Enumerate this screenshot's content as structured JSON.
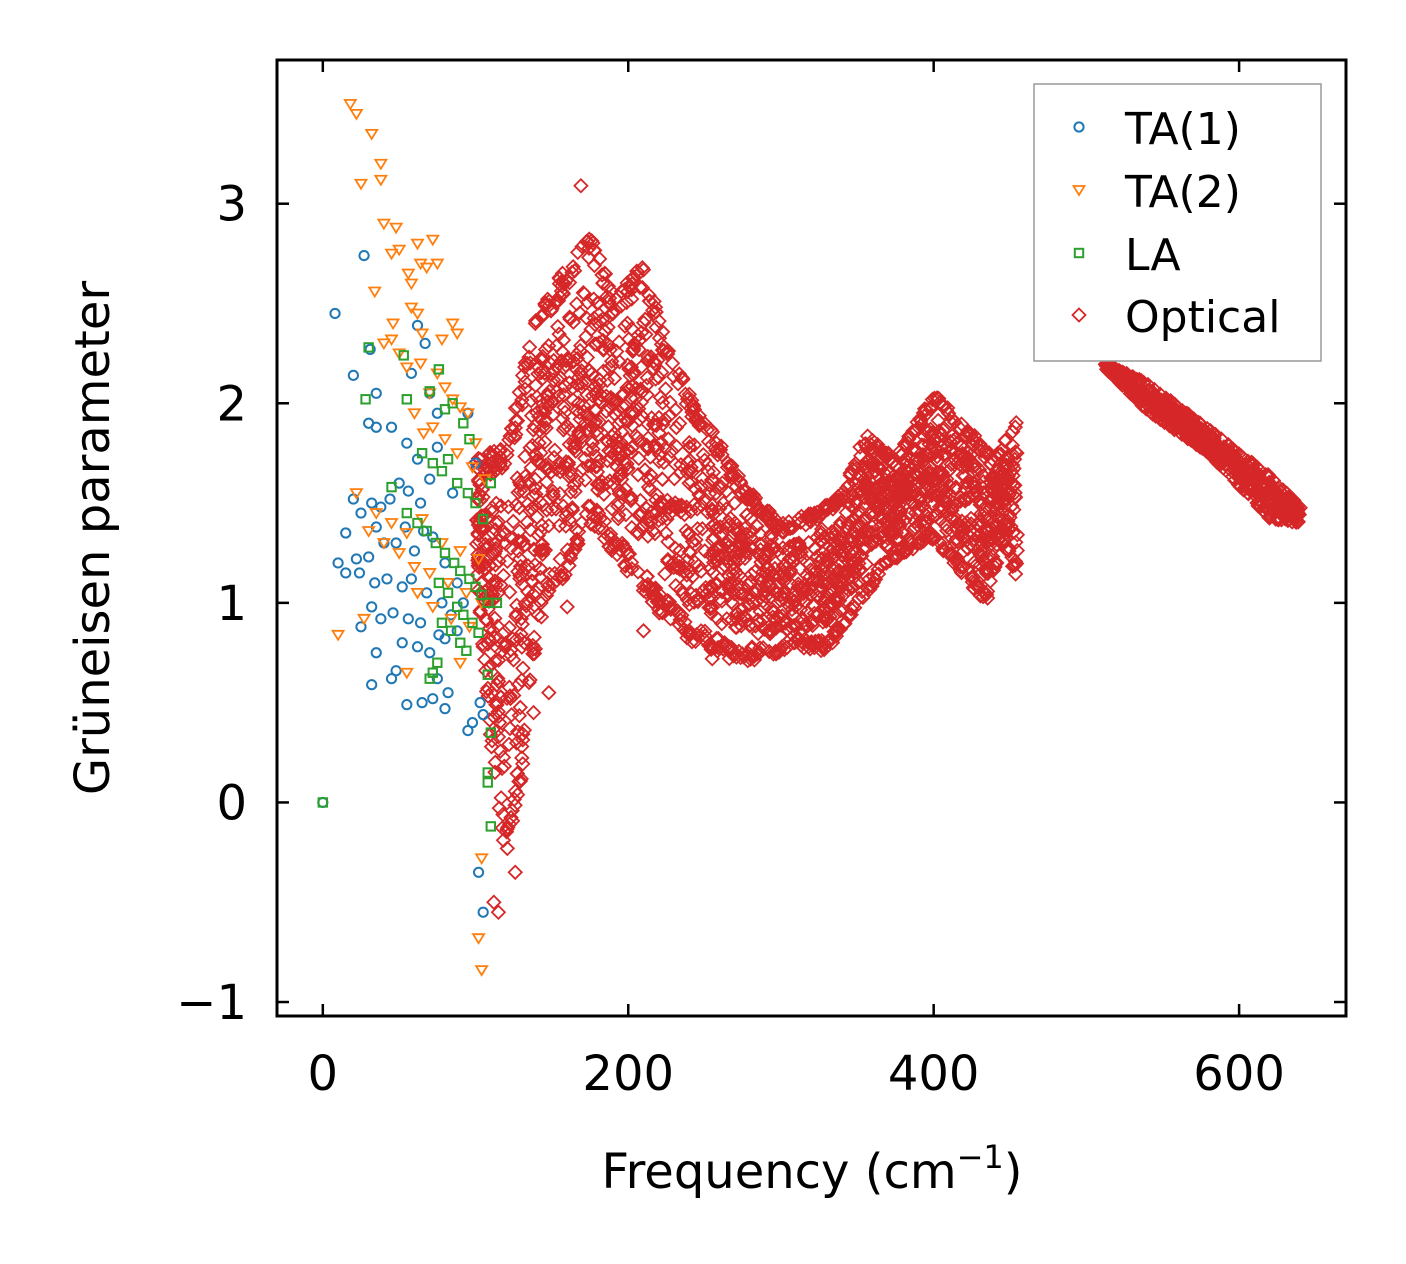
{
  "chart_data": {
    "type": "scatter",
    "title": "",
    "xlabel": "Frequency (cm",
    "xlabel_superscript": "−1",
    "xlabel_suffix": ")",
    "ylabel": "Grüneisen parameter",
    "xlim": [
      -30,
      670
    ],
    "ylim": [
      -1.07,
      3.72
    ],
    "xticks": [
      0,
      200,
      400,
      600
    ],
    "xtick_labels": [
      "0",
      "200",
      "400",
      "600"
    ],
    "yticks": [
      -1,
      0,
      1,
      2,
      3
    ],
    "ytick_labels": [
      "−1",
      "0",
      "1",
      "2",
      "3"
    ],
    "ticks_direction": "in",
    "ticks_mirrored": true,
    "legend_position": "top-right",
    "series": [
      {
        "name": "TA(1)",
        "marker": "circle",
        "color": "#1f77b4",
        "points": [
          [
            0,
            0
          ],
          [
            8,
            2.45
          ],
          [
            20,
            2.14
          ],
          [
            27,
            2.74
          ],
          [
            31,
            2.27
          ],
          [
            35,
            2.05
          ],
          [
            62,
            2.39
          ],
          [
            67,
            2.3
          ],
          [
            58,
            2.15
          ],
          [
            70,
            2.05
          ],
          [
            75,
            1.95
          ],
          [
            95,
            1.95
          ],
          [
            100,
            1.7
          ],
          [
            30,
            1.9
          ],
          [
            35,
            1.88
          ],
          [
            45,
            1.88
          ],
          [
            55,
            1.8
          ],
          [
            62,
            1.72
          ],
          [
            75,
            1.78
          ],
          [
            20,
            1.52
          ],
          [
            25,
            1.45
          ],
          [
            32,
            1.5
          ],
          [
            38,
            1.48
          ],
          [
            44,
            1.52
          ],
          [
            50,
            1.6
          ],
          [
            56,
            1.56
          ],
          [
            64,
            1.5
          ],
          [
            70,
            1.62
          ],
          [
            85,
            1.55
          ],
          [
            15,
            1.35
          ],
          [
            22,
            1.22
          ],
          [
            30,
            1.23
          ],
          [
            35,
            1.38
          ],
          [
            40,
            1.3
          ],
          [
            48,
            1.3
          ],
          [
            54,
            1.38
          ],
          [
            60,
            1.26
          ],
          [
            66,
            1.36
          ],
          [
            72,
            1.33
          ],
          [
            80,
            1.2
          ],
          [
            88,
            1.1
          ],
          [
            92,
            1.0
          ],
          [
            10,
            1.2
          ],
          [
            15,
            1.15
          ],
          [
            24,
            1.15
          ],
          [
            34,
            1.1
          ],
          [
            42,
            1.12
          ],
          [
            52,
            1.08
          ],
          [
            58,
            1.12
          ],
          [
            68,
            1.05
          ],
          [
            78,
            1.0
          ],
          [
            84,
            0.94
          ],
          [
            32,
            0.98
          ],
          [
            38,
            0.92
          ],
          [
            46,
            0.95
          ],
          [
            56,
            0.92
          ],
          [
            64,
            0.9
          ],
          [
            76,
            0.84
          ],
          [
            88,
            0.86
          ],
          [
            25,
            0.88
          ],
          [
            35,
            0.75
          ],
          [
            45,
            0.62
          ],
          [
            48,
            0.66
          ],
          [
            52,
            0.8
          ],
          [
            62,
            0.78
          ],
          [
            75,
            0.62
          ],
          [
            82,
            0.55
          ],
          [
            32,
            0.59
          ],
          [
            55,
            0.49
          ],
          [
            65,
            0.5
          ],
          [
            72,
            0.52
          ],
          [
            80,
            0.47
          ],
          [
            95,
            0.36
          ],
          [
            98,
            0.4
          ],
          [
            103,
            0.5
          ],
          [
            105,
            0.44
          ],
          [
            102,
            -0.35
          ],
          [
            105,
            -0.55
          ],
          [
            80,
            0.82
          ],
          [
            70,
            0.75
          ]
        ]
      },
      {
        "name": "TA(2)",
        "marker": "triangle-down",
        "color": "#ff7f0e",
        "points": [
          [
            18,
            3.5
          ],
          [
            22,
            3.45
          ],
          [
            32,
            3.35
          ],
          [
            38,
            3.2
          ],
          [
            25,
            3.1
          ],
          [
            38,
            3.12
          ],
          [
            40,
            2.9
          ],
          [
            48,
            2.88
          ],
          [
            50,
            2.77
          ],
          [
            45,
            2.75
          ],
          [
            56,
            2.65
          ],
          [
            58,
            2.6
          ],
          [
            62,
            2.8
          ],
          [
            64,
            2.7
          ],
          [
            68,
            2.68
          ],
          [
            72,
            2.82
          ],
          [
            75,
            2.7
          ],
          [
            34,
            2.56
          ],
          [
            46,
            2.4
          ],
          [
            58,
            2.48
          ],
          [
            62,
            2.45
          ],
          [
            65,
            2.35
          ],
          [
            78,
            2.32
          ],
          [
            85,
            2.4
          ],
          [
            88,
            2.35
          ],
          [
            40,
            2.3
          ],
          [
            45,
            2.32
          ],
          [
            50,
            2.25
          ],
          [
            55,
            2.18
          ],
          [
            64,
            2.2
          ],
          [
            70,
            2.05
          ],
          [
            75,
            2.15
          ],
          [
            80,
            2.08
          ],
          [
            85,
            2.02
          ],
          [
            90,
            1.98
          ],
          [
            95,
            1.95
          ],
          [
            100,
            1.8
          ],
          [
            60,
            1.95
          ],
          [
            66,
            1.85
          ],
          [
            72,
            1.88
          ],
          [
            80,
            1.82
          ],
          [
            88,
            1.75
          ],
          [
            98,
            1.68
          ],
          [
            106,
            1.62
          ],
          [
            22,
            1.55
          ],
          [
            35,
            1.45
          ],
          [
            45,
            1.4
          ],
          [
            55,
            1.35
          ],
          [
            65,
            1.42
          ],
          [
            78,
            1.3
          ],
          [
            90,
            1.26
          ],
          [
            102,
            1.22
          ],
          [
            30,
            1.36
          ],
          [
            40,
            1.3
          ],
          [
            50,
            1.25
          ],
          [
            60,
            1.18
          ],
          [
            70,
            1.15
          ],
          [
            82,
            1.1
          ],
          [
            94,
            1.05
          ],
          [
            104,
            1.0
          ],
          [
            62,
            1.05
          ],
          [
            72,
            0.98
          ],
          [
            84,
            0.92
          ],
          [
            96,
            0.88
          ],
          [
            10,
            0.84
          ],
          [
            27,
            0.92
          ],
          [
            55,
            0.65
          ],
          [
            90,
            0.7
          ],
          [
            104,
            -0.28
          ],
          [
            102,
            -0.68
          ],
          [
            104,
            -0.84
          ]
        ]
      },
      {
        "name": "LA",
        "marker": "square",
        "color": "#2ca02c",
        "points": [
          [
            0,
            0
          ],
          [
            30,
            2.28
          ],
          [
            53,
            2.24
          ],
          [
            28,
            2.02
          ],
          [
            55,
            2.02
          ],
          [
            70,
            2.06
          ],
          [
            85,
            2.0
          ],
          [
            76,
            2.17
          ],
          [
            80,
            1.97
          ],
          [
            92,
            1.9
          ],
          [
            96,
            1.82
          ],
          [
            65,
            1.75
          ],
          [
            72,
            1.7
          ],
          [
            78,
            1.66
          ],
          [
            82,
            1.72
          ],
          [
            88,
            1.6
          ],
          [
            95,
            1.55
          ],
          [
            100,
            1.5
          ],
          [
            105,
            1.42
          ],
          [
            110,
            1.6
          ],
          [
            45,
            1.58
          ],
          [
            55,
            1.45
          ],
          [
            62,
            1.4
          ],
          [
            68,
            1.36
          ],
          [
            74,
            1.3
          ],
          [
            80,
            1.25
          ],
          [
            86,
            1.2
          ],
          [
            90,
            1.16
          ],
          [
            96,
            1.12
          ],
          [
            100,
            1.08
          ],
          [
            104,
            1.04
          ],
          [
            108,
            1.0
          ],
          [
            114,
            1.0
          ],
          [
            76,
            1.1
          ],
          [
            82,
            1.05
          ],
          [
            88,
            0.98
          ],
          [
            92,
            0.94
          ],
          [
            98,
            0.9
          ],
          [
            102,
            0.85
          ],
          [
            78,
            0.9
          ],
          [
            84,
            0.86
          ],
          [
            90,
            0.8
          ],
          [
            94,
            0.76
          ],
          [
            72,
            0.65
          ],
          [
            75,
            0.7
          ],
          [
            70,
            0.62
          ],
          [
            108,
            0.64
          ],
          [
            110,
            0.35
          ],
          [
            108,
            0.15
          ],
          [
            108,
            0.1
          ],
          [
            110,
            -0.12
          ]
        ]
      },
      {
        "name": "Optical",
        "marker": "diamond",
        "color": "#d62728",
        "branches": [
          {
            "name": "mid-1",
            "upper": [
              [
                100,
                1.72
              ],
              [
                120,
                1.8
              ],
              [
                140,
                2.45
              ],
              [
                160,
                2.7
              ],
              [
                175,
                2.85
              ],
              [
                190,
                2.55
              ],
              [
                210,
                2.7
              ],
              [
                225,
                2.3
              ],
              [
                240,
                2.05
              ],
              [
                260,
                1.8
              ],
              [
                275,
                1.6
              ],
              [
                300,
                1.4
              ],
              [
                320,
                1.45
              ],
              [
                340,
                1.55
              ],
              [
                355,
                1.85
              ],
              [
                375,
                1.72
              ],
              [
                400,
                2.05
              ],
              [
                420,
                1.9
              ],
              [
                440,
                1.72
              ],
              [
                455,
                1.95
              ]
            ],
            "lower": [
              [
                100,
                1.2
              ],
              [
                110,
                0.3
              ],
              [
                120,
                -0.3
              ],
              [
                130,
                0.1
              ],
              [
                135,
                0.55
              ],
              [
                145,
                1.0
              ],
              [
                160,
                1.15
              ],
              [
                175,
                1.4
              ],
              [
                200,
                1.15
              ],
              [
                220,
                0.95
              ],
              [
                240,
                0.8
              ],
              [
                270,
                0.7
              ],
              [
                290,
                0.72
              ],
              [
                310,
                0.78
              ],
              [
                330,
                0.75
              ],
              [
                345,
                0.9
              ],
              [
                365,
                1.15
              ],
              [
                380,
                1.25
              ],
              [
                400,
                1.3
              ],
              [
                420,
                1.12
              ],
              [
                435,
                1.0
              ],
              [
                445,
                1.3
              ],
              [
                455,
                1.12
              ]
            ]
          },
          {
            "name": "high",
            "upper": [
              [
                512,
                2.2
              ],
              [
                540,
                2.1
              ],
              [
                580,
                1.87
              ],
              [
                620,
                1.64
              ],
              [
                640,
                1.48
              ]
            ],
            "lower": [
              [
                512,
                2.18
              ],
              [
                540,
                1.96
              ],
              [
                580,
                1.75
              ],
              [
                620,
                1.42
              ],
              [
                640,
                1.4
              ]
            ]
          }
        ],
        "outliers": [
          [
            169,
            3.09
          ],
          [
            210,
            0.86
          ],
          [
            115,
            -0.55
          ],
          [
            112,
            -0.5
          ],
          [
            126,
            -0.35
          ],
          [
            138,
            0.45
          ],
          [
            148,
            0.55
          ],
          [
            160,
            0.98
          ],
          [
            255,
            0.72
          ]
        ]
      }
    ]
  },
  "colors": {
    "TA1": "#1f77b4",
    "TA2": "#ff7f0e",
    "LA": "#2ca02c",
    "Optical": "#d62728"
  }
}
